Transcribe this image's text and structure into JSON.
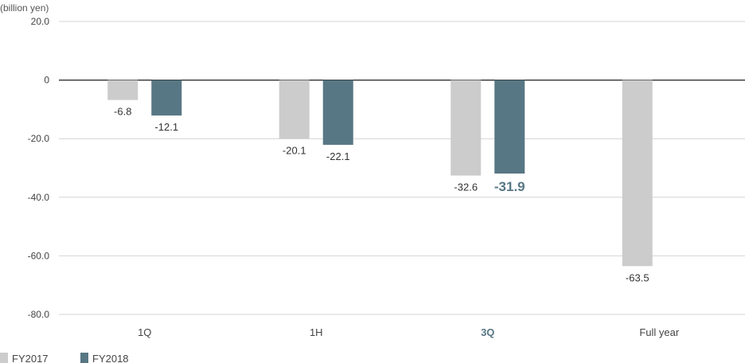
{
  "chart_data": {
    "type": "bar",
    "unit_label": "(billion yen)",
    "categories": [
      "1Q",
      "1H",
      "3Q",
      "Full year"
    ],
    "highlight_category": "3Q",
    "series": [
      {
        "name": "FY2017",
        "color": "#cccccc",
        "values": [
          -6.8,
          -20.1,
          -32.6,
          -63.5
        ],
        "labels": [
          "-6.8",
          "-20.1",
          "-32.6",
          "-63.5"
        ]
      },
      {
        "name": "FY2018",
        "color": "#587784",
        "values": [
          -12.1,
          -22.1,
          -31.9,
          null
        ],
        "labels": [
          "-12.1",
          "-22.1",
          "-31.9",
          ""
        ]
      }
    ],
    "y_ticks": [
      "20.0",
      "0",
      "-20.0",
      "-40.0",
      "-60.0",
      "-80.0"
    ],
    "y_tick_values": [
      20,
      0,
      -20,
      -40,
      -60,
      -80
    ],
    "ylim": [
      -80,
      20
    ],
    "grid": true,
    "legend_position": "bottom-left"
  }
}
